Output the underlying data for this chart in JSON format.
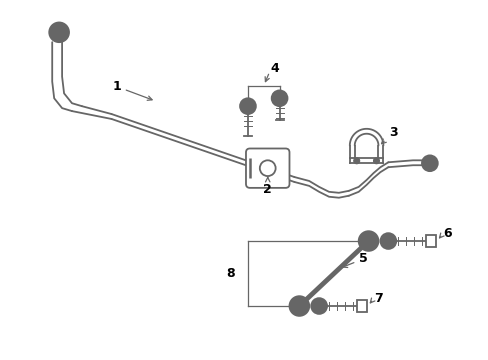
{
  "bg_color": "#ffffff",
  "line_color": "#666666",
  "text_color": "#000000",
  "lw": 1.3,
  "fig_w": 4.89,
  "fig_h": 3.6,
  "dpi": 100
}
